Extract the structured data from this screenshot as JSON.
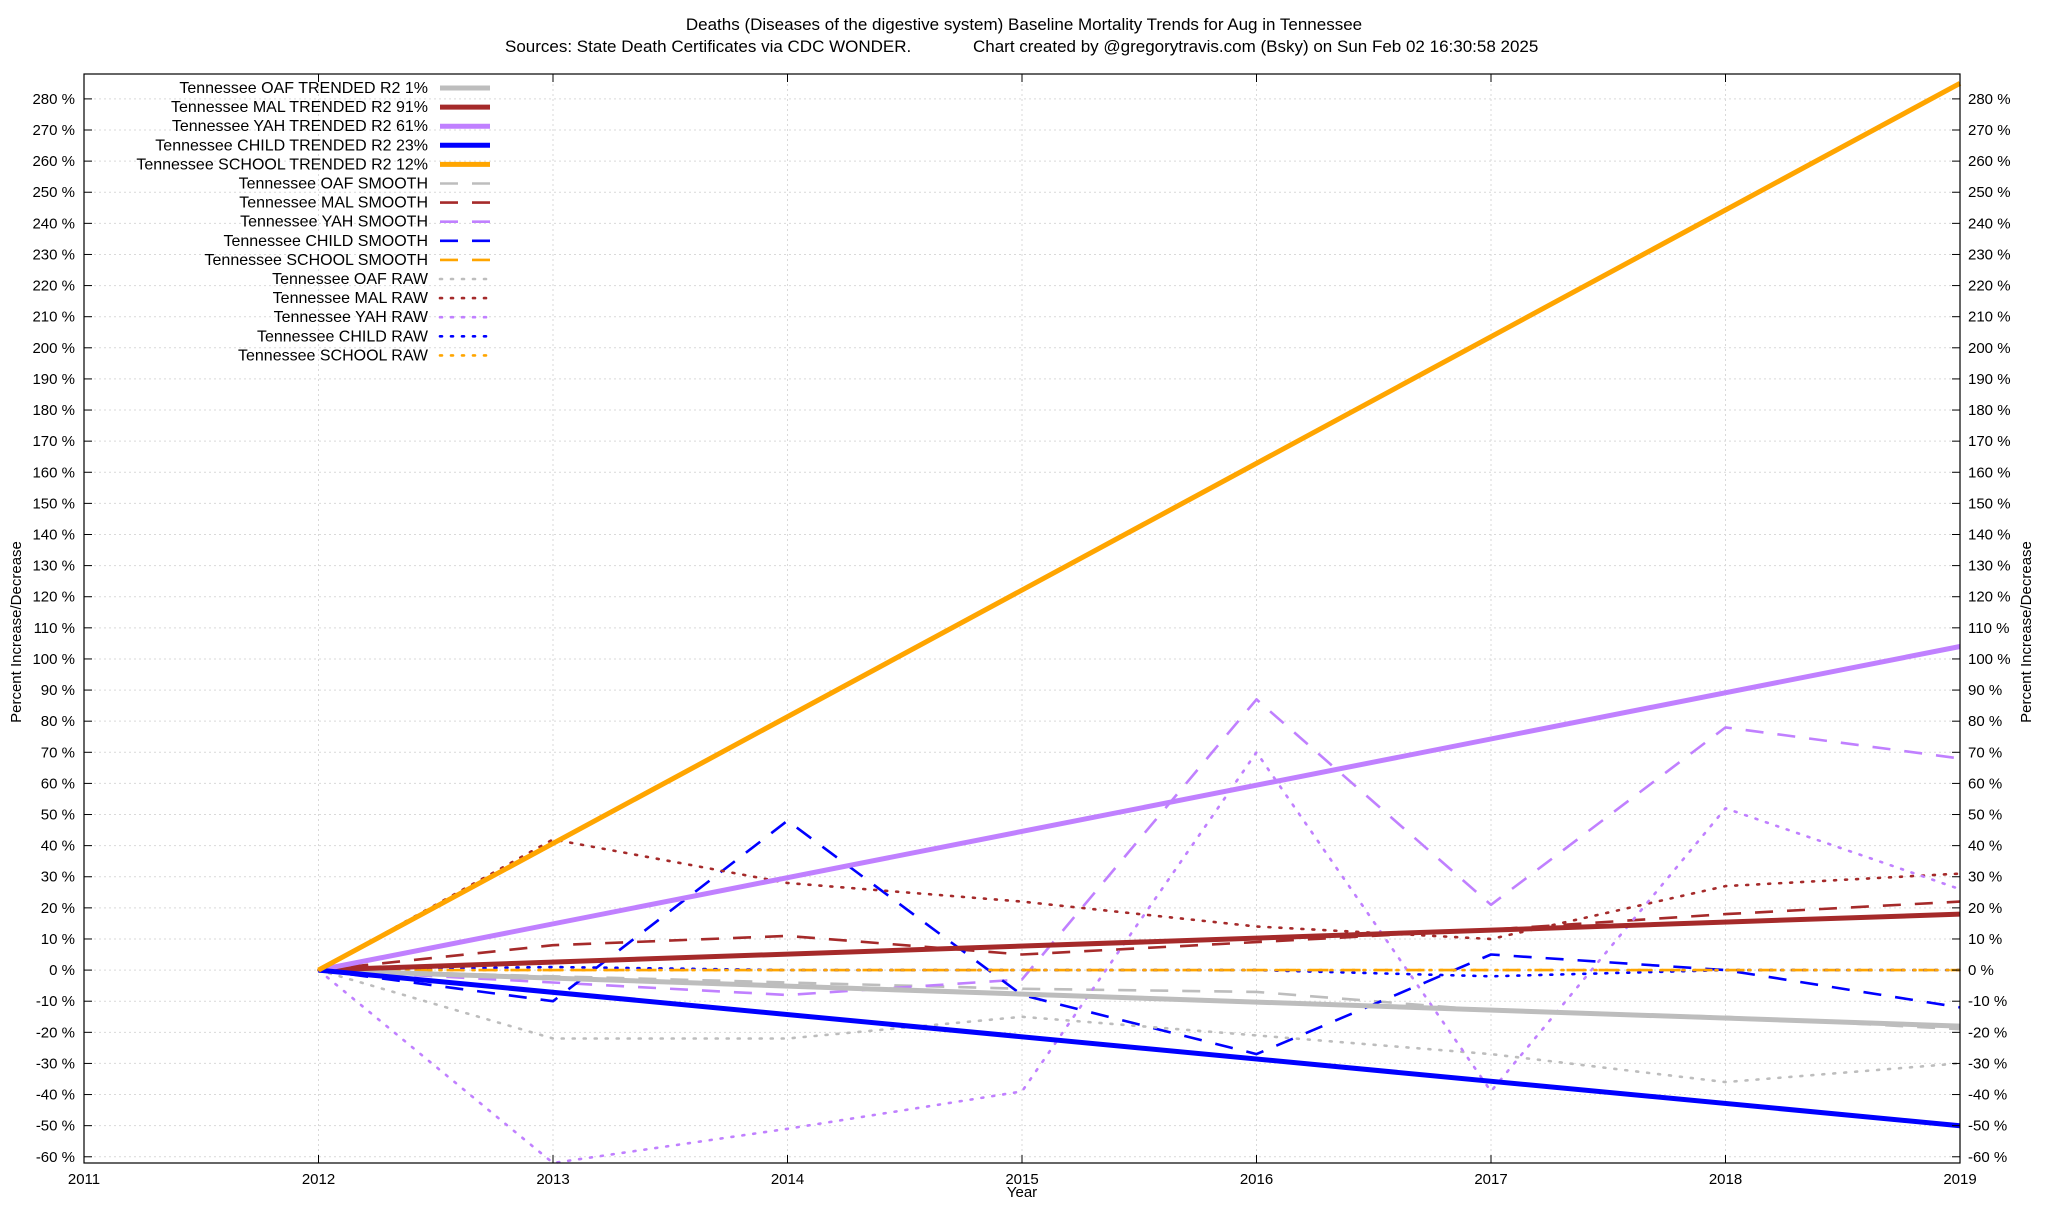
{
  "chart_data": {
    "type": "line",
    "title": "Deaths (Diseases of the digestive system)  Baseline Mortality Trends for Aug in Tennessee",
    "subtitle_left": "Sources: State Death Certificates via CDC WONDER.",
    "subtitle_right": "Chart created by @gregorytravis.com (Bsky) on Sun Feb 02 16:30:58 2025",
    "xlabel": "Year",
    "ylabel_left": "Percent Increase/Decrease",
    "ylabel_right": "Percent Increase/Decrease",
    "xlim": [
      2011,
      2019
    ],
    "ylim": [
      -62,
      288
    ],
    "x_ticks": [
      2011,
      2012,
      2013,
      2014,
      2015,
      2016,
      2017,
      2018,
      2019
    ],
    "y_ticks": [
      -60,
      -50,
      -40,
      -30,
      -20,
      -10,
      0,
      10,
      20,
      30,
      40,
      50,
      60,
      70,
      80,
      90,
      100,
      110,
      120,
      130,
      140,
      150,
      160,
      170,
      180,
      190,
      200,
      210,
      220,
      230,
      240,
      250,
      260,
      270,
      280
    ],
    "y_tick_suffix": " %",
    "grid": true,
    "legend_position": "top-left",
    "x": [
      2012,
      2013,
      2014,
      2015,
      2016,
      2017,
      2018,
      2019
    ],
    "series": [
      {
        "name": "Tennessee OAF TRENDED R2  1%",
        "style": "solid",
        "color": "#bdbdbd",
        "x": [
          2012,
          2019
        ],
        "values": [
          0,
          -18
        ]
      },
      {
        "name": "Tennessee MAL TRENDED R2  91%",
        "style": "solid",
        "color": "#a52a2a",
        "x": [
          2012,
          2019
        ],
        "values": [
          0,
          18
        ]
      },
      {
        "name": "Tennessee YAH TRENDED R2  61%",
        "style": "solid",
        "color": "#c080ff",
        "x": [
          2012,
          2019
        ],
        "values": [
          0,
          104
        ]
      },
      {
        "name": "Tennessee CHILD TRENDED R2  23%",
        "style": "solid",
        "color": "#0000ff",
        "x": [
          2012,
          2019
        ],
        "values": [
          0,
          -50
        ]
      },
      {
        "name": "Tennessee SCHOOL TRENDED R2  12%",
        "style": "solid",
        "color": "#ffa500",
        "x": [
          2012,
          2019
        ],
        "values": [
          0,
          285
        ]
      },
      {
        "name": "Tennessee OAF SMOOTH",
        "style": "dashed",
        "color": "#bdbdbd",
        "values": [
          0,
          -2,
          -4,
          -6,
          -7,
          -13,
          -15,
          -19
        ]
      },
      {
        "name": "Tennessee MAL SMOOTH",
        "style": "dashed",
        "color": "#a52a2a",
        "values": [
          0,
          8,
          11,
          5,
          9,
          13,
          18,
          22
        ]
      },
      {
        "name": "Tennessee YAH SMOOTH",
        "style": "dashed",
        "color": "#c080ff",
        "values": [
          0,
          -4,
          -8,
          -3,
          87,
          21,
          78,
          68
        ]
      },
      {
        "name": "Tennessee CHILD SMOOTH",
        "style": "dashed",
        "color": "#0000ff",
        "values": [
          0,
          -10,
          48,
          -8,
          -27,
          5,
          0,
          -12
        ]
      },
      {
        "name": "Tennessee SCHOOL SMOOTH",
        "style": "dashed",
        "color": "#ffa500",
        "values": [
          0,
          0,
          0,
          0,
          0,
          0,
          0,
          0
        ]
      },
      {
        "name": "Tennessee OAF RAW",
        "style": "dotted",
        "color": "#bdbdbd",
        "values": [
          0,
          -22,
          -22,
          -15,
          -21,
          -27,
          -36,
          -30
        ]
      },
      {
        "name": "Tennessee MAL RAW",
        "style": "dotted",
        "color": "#a52a2a",
        "values": [
          0,
          42,
          28,
          22,
          14,
          10,
          27,
          31
        ]
      },
      {
        "name": "Tennessee YAH RAW",
        "style": "dotted",
        "color": "#c080ff",
        "values": [
          0,
          -62,
          -51,
          -39,
          70,
          -39,
          52,
          26
        ]
      },
      {
        "name": "Tennessee CHILD RAW",
        "style": "dotted",
        "color": "#0000ff",
        "values": [
          0,
          1,
          0,
          0,
          0,
          -2,
          0,
          0
        ]
      },
      {
        "name": "Tennessee SCHOOL RAW",
        "style": "dotted",
        "color": "#ffa500",
        "values": [
          0,
          0,
          0,
          0,
          0,
          0,
          0,
          0
        ]
      }
    ]
  }
}
